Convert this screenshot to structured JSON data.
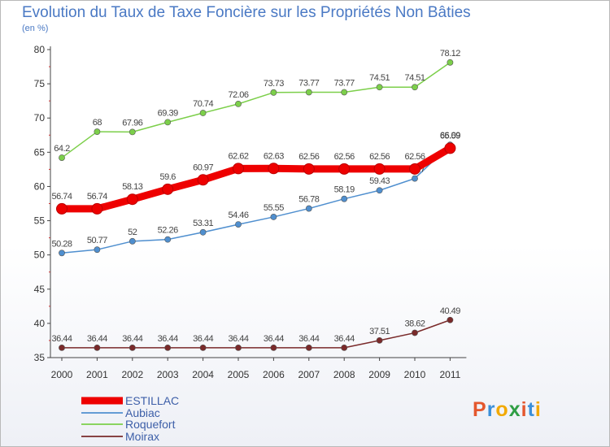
{
  "title": "Evolution du Taux de Taxe Foncière sur les Propriétés Non Bâties",
  "unit": "(en %)",
  "logo": {
    "letters": [
      "P",
      "r",
      "o",
      "x",
      "i",
      "t",
      "i"
    ],
    "colors": [
      "#e4572e",
      "#3a8fd9",
      "#f2a900",
      "#2f9e44",
      "#e4572e",
      "#3a8fd9",
      "#f2a900"
    ]
  },
  "chart_data": {
    "type": "line",
    "x": [
      "2000",
      "2001",
      "2002",
      "2003",
      "2004",
      "2005",
      "2006",
      "2007",
      "2008",
      "2009",
      "2010",
      "2011"
    ],
    "ylim": [
      35,
      80
    ],
    "yticks": [
      35,
      40,
      45,
      50,
      55,
      60,
      65,
      70,
      75,
      80
    ],
    "grid": false,
    "legend": "bottom-left",
    "series": [
      {
        "name": "ESTILLAC",
        "color": "#ee0000",
        "values": [
          56.74,
          56.74,
          58.13,
          59.6,
          60.97,
          62.62,
          62.63,
          62.56,
          62.56,
          62.56,
          62.56,
          65.59
        ],
        "labels": [
          "56.74",
          "56.74",
          "58.13",
          "59.6",
          "60.97",
          "62.62",
          "62.63",
          "62.56",
          "62.56",
          "62.56",
          "62.56",
          "65.59"
        ]
      },
      {
        "name": "Aubiac",
        "color": "#4f8fcf",
        "values": [
          50.28,
          50.77,
          52,
          52.26,
          53.31,
          54.46,
          55.55,
          56.78,
          58.19,
          59.43,
          61.17,
          66.09
        ],
        "labels": [
          "50.28",
          "50.77",
          "52",
          "52.26",
          "53.31",
          "54.46",
          "55.55",
          "56.78",
          "58.19",
          "59.43",
          "61.17",
          "66.09"
        ]
      },
      {
        "name": "Roquefort",
        "color": "#7ccf4a",
        "values": [
          64.2,
          68,
          67.96,
          69.39,
          70.74,
          72.06,
          73.73,
          73.77,
          73.77,
          74.51,
          74.51,
          78.12
        ],
        "labels": [
          "64.2",
          "68",
          "67.96",
          "69.39",
          "70.74",
          "72.06",
          "73.73",
          "73.77",
          "73.77",
          "74.51",
          "74.51",
          "78.12"
        ]
      },
      {
        "name": "Moirax",
        "color": "#7a2a2a",
        "values": [
          36.44,
          36.44,
          36.44,
          36.44,
          36.44,
          36.44,
          36.44,
          36.44,
          36.44,
          37.51,
          38.62,
          40.49
        ],
        "labels": [
          "36.44",
          "36.44",
          "36.44",
          "36.44",
          "36.44",
          "36.44",
          "36.44",
          "36.44",
          "36.44",
          "37.51",
          "38.62",
          "40.49"
        ]
      }
    ]
  }
}
